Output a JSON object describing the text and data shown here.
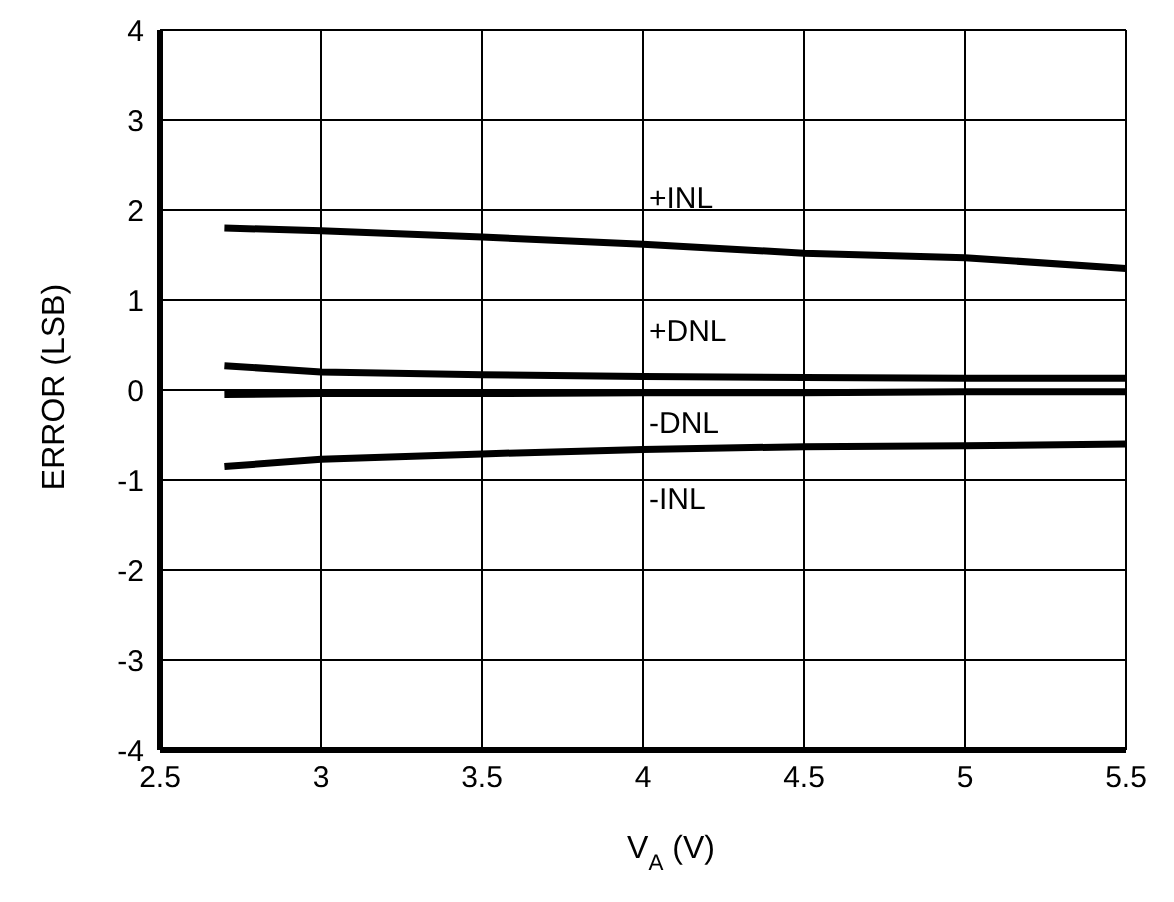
{
  "chart_data": {
    "type": "line",
    "xlabel": "V$_{A}$ (V)",
    "ylabel": "ERROR (LSB)",
    "x": [
      2.7,
      3,
      3.5,
      4,
      4.5,
      5,
      5.5
    ],
    "series": [
      {
        "name": "+INL",
        "color": "#000000",
        "values": [
          1.8,
          1.77,
          1.7,
          1.62,
          1.52,
          1.47,
          1.35
        ]
      },
      {
        "name": "+DNL",
        "color": "#000000",
        "values": [
          0.27,
          0.2,
          0.17,
          0.15,
          0.14,
          0.13,
          0.13
        ]
      },
      {
        "name": "-DNL",
        "color": "#000000",
        "values": [
          -0.05,
          -0.04,
          -0.04,
          -0.03,
          -0.03,
          -0.02,
          -0.02
        ]
      },
      {
        "name": "-INL",
        "color": "#000000",
        "values": [
          -0.85,
          -0.77,
          -0.71,
          -0.66,
          -0.63,
          -0.62,
          -0.6
        ]
      }
    ],
    "xlim": [
      2.5,
      5.5
    ],
    "xticks": [
      2.5,
      3,
      3.5,
      4,
      4.5,
      5,
      5.5
    ],
    "ylim": [
      -4,
      4
    ],
    "yticks": [
      -4,
      -3,
      -2,
      -1,
      0,
      1,
      2,
      3,
      4
    ],
    "grid": true,
    "legend": false,
    "marker": "none",
    "line_style": "solid"
  }
}
